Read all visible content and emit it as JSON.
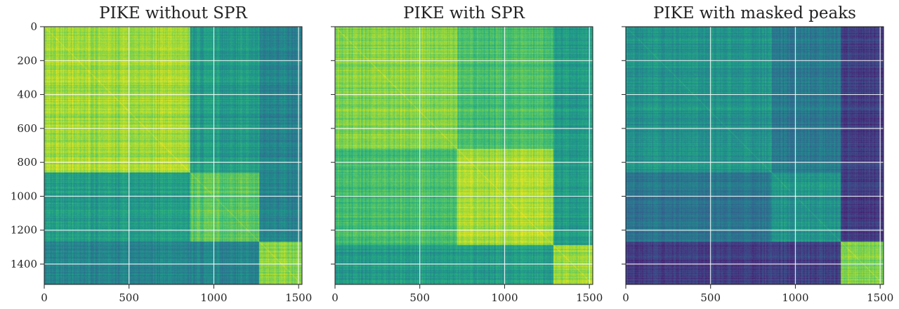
{
  "chart_data": [
    {
      "type": "heatmap",
      "title": "PIKE without SPR",
      "x_range": [
        0,
        1520
      ],
      "y_range": [
        0,
        1520
      ],
      "y_inverted": true,
      "grid": true,
      "x_ticks": [
        0,
        500,
        1000,
        1500
      ],
      "x_tick_labels": [
        "0",
        "500",
        "1000",
        "1500"
      ],
      "y_ticks": [
        0,
        200,
        400,
        600,
        800,
        1000,
        1200,
        1400
      ],
      "y_tick_labels": [
        "0",
        "200",
        "400",
        "600",
        "800",
        "1000",
        "1200",
        "1400"
      ],
      "show_y_tick_labels": true,
      "block_bounds": [
        0,
        860,
        1270,
        1520
      ],
      "block_values": [
        [
          0.86,
          0.55,
          0.45
        ],
        [
          0.55,
          0.74,
          0.45
        ],
        [
          0.45,
          0.45,
          0.82
        ]
      ]
    },
    {
      "type": "heatmap",
      "title": "PIKE with SPR",
      "x_range": [
        0,
        1520
      ],
      "y_range": [
        0,
        1520
      ],
      "y_inverted": true,
      "grid": true,
      "x_ticks": [
        0,
        500,
        1000,
        1500
      ],
      "x_tick_labels": [
        "0",
        "500",
        "1000",
        "1500"
      ],
      "y_ticks": [
        0,
        200,
        400,
        600,
        800,
        1000,
        1200,
        1400
      ],
      "y_tick_labels": [
        "0",
        "200",
        "400",
        "600",
        "800",
        "1000",
        "1200",
        "1400"
      ],
      "show_y_tick_labels": false,
      "block_bounds": [
        0,
        720,
        1290,
        1520
      ],
      "block_values": [
        [
          0.82,
          0.7,
          0.55
        ],
        [
          0.7,
          0.87,
          0.55
        ],
        [
          0.55,
          0.55,
          0.85
        ]
      ]
    },
    {
      "type": "heatmap",
      "title": "PIKE with masked peaks",
      "x_range": [
        0,
        1520
      ],
      "y_range": [
        0,
        1520
      ],
      "y_inverted": true,
      "grid": true,
      "x_ticks": [
        0,
        500,
        1000,
        1500
      ],
      "x_tick_labels": [
        "0",
        "500",
        "1000",
        "1500"
      ],
      "y_ticks": [
        0,
        200,
        400,
        600,
        800,
        1000,
        1200,
        1400
      ],
      "y_tick_labels": [
        "0",
        "200",
        "400",
        "600",
        "800",
        "1000",
        "1200",
        "1400"
      ],
      "show_y_tick_labels": false,
      "block_bounds": [
        0,
        860,
        1270,
        1520
      ],
      "block_values": [
        [
          0.52,
          0.4,
          0.18
        ],
        [
          0.4,
          0.52,
          0.18
        ],
        [
          0.18,
          0.18,
          0.8
        ]
      ]
    }
  ],
  "colors": {
    "colormap": "viridis",
    "grid": "#ffffff",
    "axis": "#222222"
  }
}
